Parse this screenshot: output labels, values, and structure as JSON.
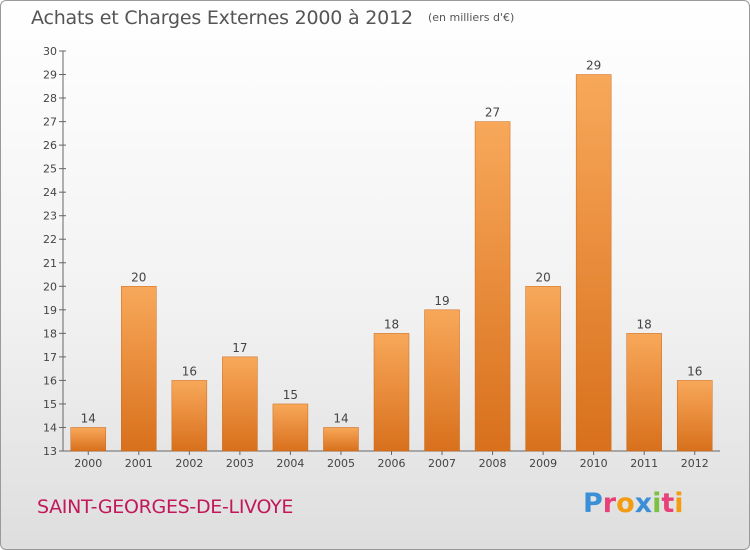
{
  "header": {
    "title": "Achats et Charges Externes 2000 à 2012",
    "subtitle": "(en milliers d'€)"
  },
  "footer": {
    "commune": "SAINT-GEORGES-DE-LIVOYE",
    "logo_text": "Proxiti",
    "logo_colors": [
      "#3b8fd6",
      "#e8417a",
      "#f39c12",
      "#3b8fd6",
      "#7cc242",
      "#e8417a",
      "#f39c12"
    ]
  },
  "colors": {
    "bar_light": "#f8a85a",
    "bar_dark": "#d8701c",
    "label": "#444444",
    "axis": "#666666"
  },
  "chart_data": {
    "type": "bar",
    "categories": [
      "2000",
      "2001",
      "2002",
      "2003",
      "2004",
      "2005",
      "2006",
      "2007",
      "2008",
      "2009",
      "2010",
      "2011",
      "2012"
    ],
    "values": [
      14,
      20,
      16,
      17,
      15,
      14,
      18,
      19,
      27,
      20,
      29,
      18,
      16
    ],
    "title": "Achats et Charges Externes 2000 à 2012",
    "ylim": [
      13,
      30
    ],
    "yticks": [
      13,
      14,
      15,
      16,
      17,
      18,
      19,
      20,
      21,
      22,
      23,
      24,
      25,
      26,
      27,
      28,
      29,
      30
    ],
    "grid": false,
    "data_labels": true
  }
}
